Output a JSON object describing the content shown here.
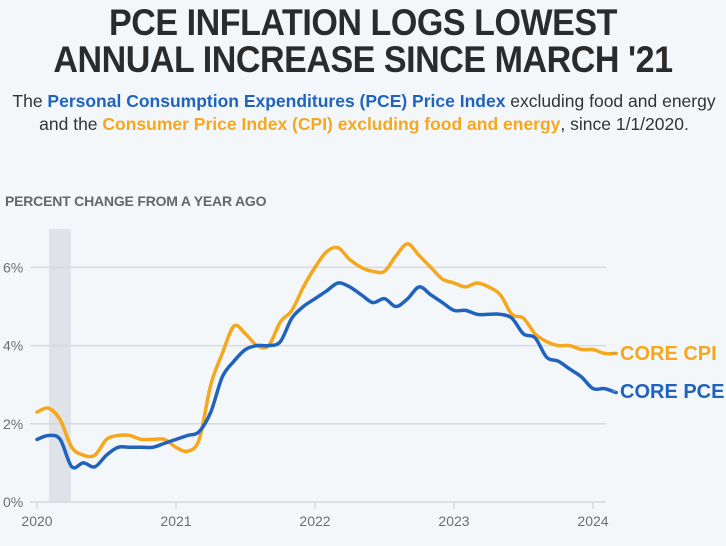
{
  "header": {
    "title_line1": "PCE INFLATION LOGS LOWEST",
    "title_line2": "ANNUAL INCREASE SINCE MARCH '21",
    "subtitle_parts": {
      "p1": "The ",
      "pce_name": "Personal Consumption Expenditures (PCE) Price Index",
      "p2": " excluding food and energy and the ",
      "cpi_name": "Consumer Price Index (CPI) excluding food and energy",
      "p3": ", since 1/1/2020."
    }
  },
  "colors": {
    "pce": "#1f63bf",
    "cpi": "#f5a71d",
    "recession_band": "#dfe2e6",
    "grid": "#d9d9d9"
  },
  "chart_data": {
    "type": "line",
    "title": "PCE INFLATION LOGS LOWEST ANNUAL INCREASE SINCE MARCH '21",
    "ylabel": "PERCENT CHANGE FROM A YEAR AGO",
    "xlabel": "",
    "x_start": "2020-01",
    "x_frequency": "monthly",
    "xlim": [
      "2020-01",
      "2024-03"
    ],
    "ylim": [
      0,
      7
    ],
    "y_ticks": [
      0,
      2,
      4,
      6
    ],
    "y_tick_labels": [
      "0%",
      "2%",
      "4%",
      "6%"
    ],
    "x_ticks": [
      0,
      12,
      24,
      36,
      48
    ],
    "x_tick_labels": [
      "2020",
      "2021",
      "2022",
      "2023",
      "2024"
    ],
    "grid": "horizontal",
    "shaded_region": {
      "label": "recession",
      "start_month_index": 1,
      "end_month_index": 3
    },
    "legend": "right-end labels",
    "series": [
      {
        "name": "CORE CPI",
        "color": "#f5a71d",
        "values": [
          2.3,
          2.4,
          2.1,
          1.4,
          1.2,
          1.2,
          1.6,
          1.7,
          1.7,
          1.6,
          1.6,
          1.6,
          1.4,
          1.3,
          1.6,
          3.0,
          3.8,
          4.5,
          4.3,
          4.0,
          4.0,
          4.6,
          4.9,
          5.5,
          6.0,
          6.4,
          6.5,
          6.2,
          6.0,
          5.9,
          5.9,
          6.3,
          6.6,
          6.3,
          6.0,
          5.7,
          5.6,
          5.5,
          5.6,
          5.5,
          5.3,
          4.8,
          4.7,
          4.3,
          4.1,
          4.0,
          4.0,
          3.9,
          3.9,
          3.8,
          3.8
        ]
      },
      {
        "name": "CORE PCE",
        "color": "#1f63bf",
        "values": [
          1.6,
          1.7,
          1.6,
          0.9,
          1.0,
          0.9,
          1.2,
          1.4,
          1.4,
          1.4,
          1.4,
          1.5,
          1.6,
          1.7,
          1.8,
          2.3,
          3.2,
          3.6,
          3.9,
          4.0,
          4.0,
          4.1,
          4.7,
          5.0,
          5.2,
          5.4,
          5.6,
          5.5,
          5.3,
          5.1,
          5.2,
          5.0,
          5.2,
          5.5,
          5.3,
          5.1,
          4.9,
          4.9,
          4.8,
          4.8,
          4.8,
          4.7,
          4.3,
          4.2,
          3.7,
          3.6,
          3.4,
          3.2,
          2.9,
          2.9,
          2.8
        ]
      }
    ]
  }
}
